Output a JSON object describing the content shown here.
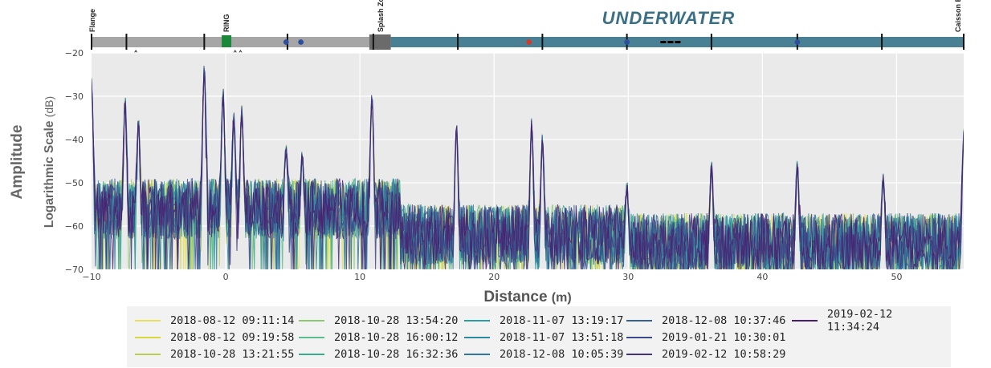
{
  "chart_data": {
    "type": "line",
    "xlabel": "Distance",
    "xlabel_unit": "(m)",
    "ylabel_outer": "Amplitude",
    "ylabel": "Logarithmic Scale",
    "ylabel_unit": "(dB)",
    "xlim": [
      -10,
      55
    ],
    "ylim": [
      -70,
      -20
    ],
    "xticks": [
      -10,
      0,
      10,
      20,
      30,
      40,
      50
    ],
    "yticks": [
      -20,
      -30,
      -40,
      -50,
      -60,
      -70
    ],
    "grid": true,
    "legend_position": "bottom",
    "zones": [
      {
        "label": "Flange",
        "x": -10
      },
      {
        "label": "RING",
        "x": 0
      },
      {
        "label": "Splash Zone",
        "x": 11.5
      },
      {
        "label": "UNDERWATER",
        "x": 33
      },
      {
        "label": "Caisson END",
        "x": 55
      }
    ],
    "zone_colors": {
      "dry": "#a6a6a6",
      "splash": "#6b6b6b",
      "underwater": "#4a8093",
      "title": "#3a6f86"
    },
    "peaks": [
      {
        "x": -10.0,
        "y": -27
      },
      {
        "x": -7.5,
        "y": -31
      },
      {
        "x": -6.5,
        "y": -36
      },
      {
        "x": -1.6,
        "y": -23.5
      },
      {
        "x": -0.2,
        "y": -29
      },
      {
        "x": 0.6,
        "y": -35
      },
      {
        "x": 1.2,
        "y": -33.5
      },
      {
        "x": 4.5,
        "y": -42
      },
      {
        "x": 5.7,
        "y": -44
      },
      {
        "x": 10.9,
        "y": -30.5
      },
      {
        "x": 17.2,
        "y": -37.5
      },
      {
        "x": 22.8,
        "y": -36.5
      },
      {
        "x": 23.6,
        "y": -40
      },
      {
        "x": 29.9,
        "y": -51
      },
      {
        "x": 36.2,
        "y": -46
      },
      {
        "x": 42.6,
        "y": -46
      },
      {
        "x": 49.0,
        "y": -49
      },
      {
        "x": 55.0,
        "y": -39
      }
    ],
    "noise_floor_db": -62,
    "series": [
      {
        "name": "2018-08-12 09:11:14",
        "color": "#e8e25a"
      },
      {
        "name": "2018-08-12 09:19:58",
        "color": "#d8d83e"
      },
      {
        "name": "2018-10-28 13:21:55",
        "color": "#b9cf52"
      },
      {
        "name": "2018-10-28 13:54:20",
        "color": "#8cc870"
      },
      {
        "name": "2018-10-28 16:00:12",
        "color": "#5bbd8d"
      },
      {
        "name": "2018-10-28 16:32:36",
        "color": "#3aaa8e"
      },
      {
        "name": "2018-11-07 13:19:17",
        "color": "#2a9ea6"
      },
      {
        "name": "2018-11-07 13:51:18",
        "color": "#2b8aa3"
      },
      {
        "name": "2018-12-08 10:05:39",
        "color": "#2f76a0"
      },
      {
        "name": "2018-12-08 10:37:46",
        "color": "#375f96"
      },
      {
        "name": "2019-01-21 10:30:01",
        "color": "#3b4a8a"
      },
      {
        "name": "2019-02-12 10:58:29",
        "color": "#45317c"
      },
      {
        "name": "2019-02-12 11:34:24",
        "color": "#4b1d6e"
      }
    ]
  }
}
